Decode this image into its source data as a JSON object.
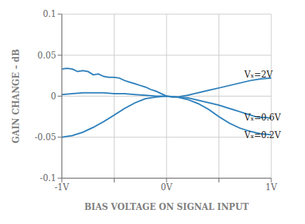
{
  "chart_data": {
    "type": "line",
    "title": "",
    "xlabel": "BIAS VOLTAGE ON SIGNAL INPUT",
    "ylabel": "GAIN CHANGE – dB",
    "xlim": [
      -1,
      1
    ],
    "ylim": [
      -0.1,
      0.1
    ],
    "xticks": [
      {
        "value": -1,
        "label": "-1V"
      },
      {
        "value": -0.5,
        "label": null
      },
      {
        "value": 0,
        "label": "0V"
      },
      {
        "value": 0.5,
        "label": null
      },
      {
        "value": 1,
        "label": "1V"
      }
    ],
    "yticks": [
      -0.1,
      -0.05,
      0,
      0.05,
      0.1
    ],
    "grid": true,
    "series": [
      {
        "name": "Vₓ=2V",
        "x": [
          -1.0,
          -0.95,
          -0.9,
          -0.85,
          -0.8,
          -0.75,
          -0.7,
          -0.65,
          -0.6,
          -0.55,
          -0.5,
          -0.45,
          -0.4,
          -0.35,
          -0.3,
          -0.25,
          -0.2,
          -0.15,
          -0.1,
          -0.05,
          0.0,
          0.05,
          0.1,
          0.2,
          0.3,
          0.4,
          0.5,
          0.6,
          0.7,
          0.8,
          0.9,
          1.0
        ],
        "values": [
          0.033,
          0.034,
          0.033,
          0.03,
          0.031,
          0.03,
          0.026,
          0.027,
          0.024,
          0.023,
          0.023,
          0.022,
          0.019,
          0.017,
          0.015,
          0.013,
          0.011,
          0.008,
          0.006,
          0.003,
          0.0,
          -0.001,
          -0.001,
          0.001,
          0.004,
          0.007,
          0.01,
          0.013,
          0.016,
          0.019,
          0.021,
          0.022
        ]
      },
      {
        "name": "Vₓ=0.6V",
        "x": [
          -1.0,
          -0.9,
          -0.8,
          -0.7,
          -0.6,
          -0.5,
          -0.4,
          -0.3,
          -0.2,
          -0.1,
          0.0,
          0.1,
          0.2,
          0.3,
          0.4,
          0.5,
          0.6,
          0.65,
          0.7,
          0.75,
          0.8,
          0.85,
          0.9,
          0.95,
          1.0
        ],
        "values": [
          0.002,
          0.003,
          0.004,
          0.004,
          0.004,
          0.003,
          0.003,
          0.002,
          0.001,
          0.0,
          0.0,
          -0.001,
          -0.002,
          -0.005,
          -0.008,
          -0.011,
          -0.015,
          -0.017,
          -0.019,
          -0.021,
          -0.023,
          -0.025,
          -0.026,
          -0.026,
          -0.027
        ]
      },
      {
        "name": "Vₓ=0.2V",
        "x": [
          -1.0,
          -0.9,
          -0.8,
          -0.7,
          -0.6,
          -0.5,
          -0.4,
          -0.3,
          -0.2,
          -0.1,
          0.0,
          0.1,
          0.2,
          0.3,
          0.4,
          0.5,
          0.6,
          0.7,
          0.8,
          0.9,
          1.0
        ],
        "values": [
          -0.05,
          -0.048,
          -0.044,
          -0.038,
          -0.031,
          -0.023,
          -0.015,
          -0.008,
          -0.003,
          -0.001,
          0.0,
          -0.001,
          -0.004,
          -0.009,
          -0.016,
          -0.025,
          -0.033,
          -0.039,
          -0.043,
          -0.046,
          -0.047
        ]
      }
    ],
    "annotations": [
      {
        "text": "Vₓ=2V",
        "x": 0.73,
        "y": 0.026
      },
      {
        "text": "Vₓ=0.6V",
        "x": 0.73,
        "y": -0.026
      },
      {
        "text": "Vₓ=0.2V",
        "x": 0.73,
        "y": -0.047
      }
    ]
  }
}
